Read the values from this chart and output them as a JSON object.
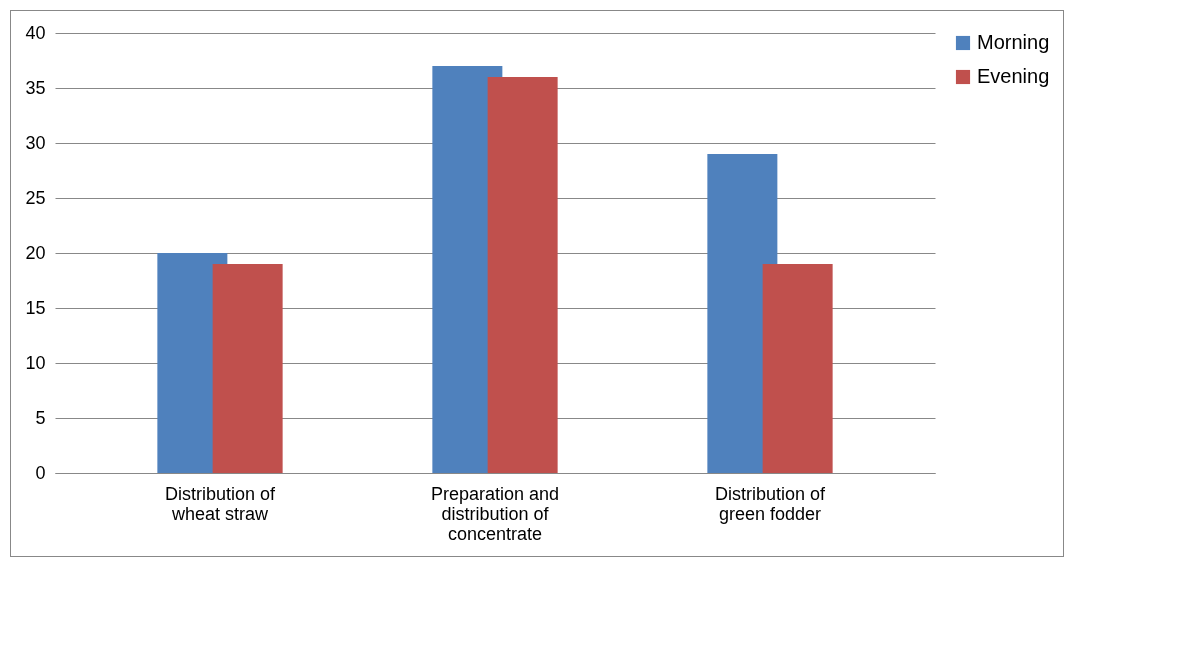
{
  "chart_data": {
    "type": "bar",
    "categories": [
      "Distribution of wheat straw",
      "Preparation and distribution of concentrate",
      "Distribution of green fodder"
    ],
    "series": [
      {
        "name": "Morning",
        "color": "#4f81bd",
        "values": [
          20,
          37,
          29
        ]
      },
      {
        "name": "Evening",
        "color": "#c0504d",
        "values": [
          19,
          36,
          19
        ]
      }
    ],
    "ylim": [
      0,
      40
    ],
    "yticks": [
      0,
      5,
      10,
      15,
      20,
      25,
      30,
      35,
      40
    ],
    "grid": "y",
    "legend": "right"
  }
}
